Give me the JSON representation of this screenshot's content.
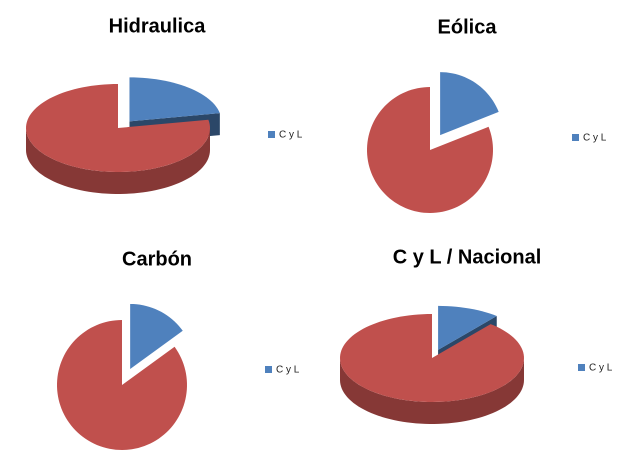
{
  "chart_data": [
    {
      "type": "pie3d",
      "title": "Hidraulica",
      "categories": [
        "C y L",
        null
      ],
      "values": [
        22,
        78
      ],
      "colors": [
        "#4f81bd",
        "#c0504d"
      ],
      "legend": "right"
    },
    {
      "type": "pie",
      "title": "Eólica",
      "categories": [
        "C y L",
        null
      ],
      "values": [
        19,
        81
      ],
      "colors": [
        "#4f81bd",
        "#c0504d"
      ],
      "legend": "right"
    },
    {
      "type": "pie",
      "title": "Carbón",
      "categories": [
        "C y L",
        null
      ],
      "values": [
        15,
        85
      ],
      "colors": [
        "#4f81bd",
        "#c0504d"
      ],
      "legend": "right"
    },
    {
      "type": "pie3d",
      "title": "C y L / Nacional",
      "categories": [
        "C y L",
        null
      ],
      "values": [
        11,
        89
      ],
      "colors": [
        "#4f81bd",
        "#c0504d"
      ],
      "legend": "right"
    }
  ]
}
